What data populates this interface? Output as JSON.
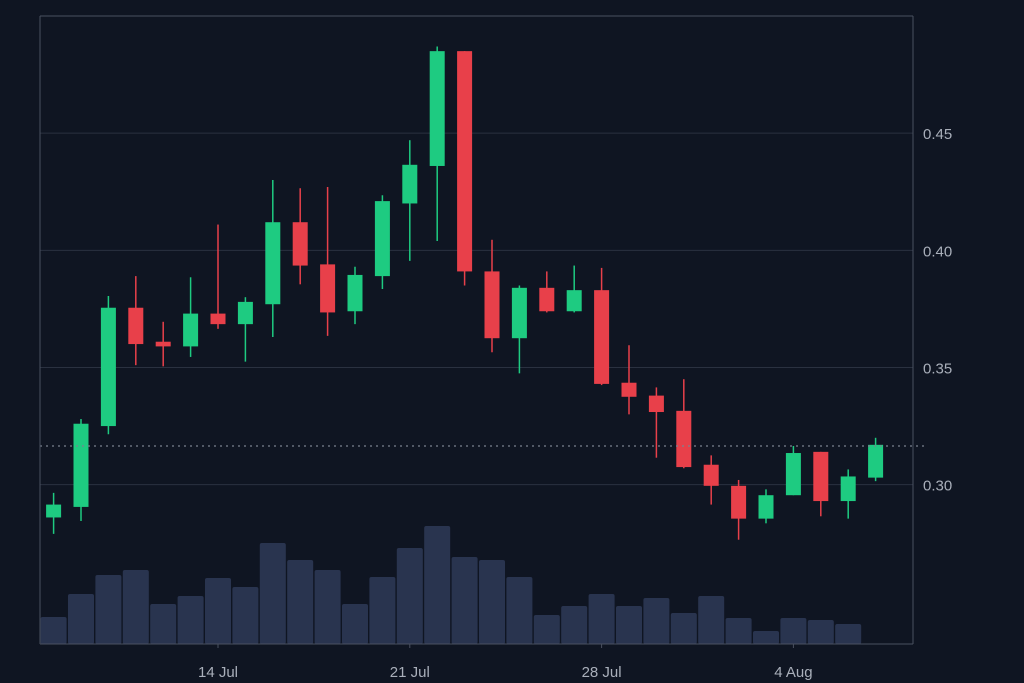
{
  "chart_data": {
    "type": "candlestick",
    "title": "",
    "xlabel": "",
    "ylabel": "",
    "y_ticks": [
      "0.30",
      "0.35",
      "0.40",
      "0.45"
    ],
    "x_ticks": [
      {
        "label": "14 Jul",
        "index": 6
      },
      {
        "label": "21 Jul",
        "index": 13
      },
      {
        "label": "28 Jul",
        "index": 20
      },
      {
        "label": "4 Aug",
        "index": 27
      }
    ],
    "ylim": [
      0.232,
      0.5
    ],
    "current_price": 0.3165,
    "grid": true,
    "colors": {
      "background": "#0f1522",
      "grid": "#2a3140",
      "axis": "#4a5160",
      "up": "#1ecb81",
      "down": "#e8404a",
      "volume": "#29344f",
      "tick_text": "#a9afba",
      "price_line": "#7a8290"
    },
    "candles": [
      {
        "date": "8 Jul",
        "open": 0.286,
        "high": 0.2965,
        "low": 0.279,
        "close": 0.2915,
        "volume": 27
      },
      {
        "date": "9 Jul",
        "open": 0.2905,
        "high": 0.328,
        "low": 0.2845,
        "close": 0.326,
        "volume": 50
      },
      {
        "date": "10 Jul",
        "open": 0.325,
        "high": 0.3805,
        "low": 0.3215,
        "close": 0.3755,
        "volume": 69
      },
      {
        "date": "11 Jul",
        "open": 0.3755,
        "high": 0.389,
        "low": 0.351,
        "close": 0.36,
        "volume": 74
      },
      {
        "date": "12 Jul",
        "open": 0.361,
        "high": 0.3695,
        "low": 0.3505,
        "close": 0.359,
        "volume": 40
      },
      {
        "date": "13 Jul",
        "open": 0.359,
        "high": 0.3885,
        "low": 0.3545,
        "close": 0.373,
        "volume": 48
      },
      {
        "date": "14 Jul",
        "open": 0.373,
        "high": 0.411,
        "low": 0.3665,
        "close": 0.3685,
        "volume": 66
      },
      {
        "date": "15 Jul",
        "open": 0.3685,
        "high": 0.38,
        "low": 0.3525,
        "close": 0.378,
        "volume": 57
      },
      {
        "date": "16 Jul",
        "open": 0.377,
        "high": 0.43,
        "low": 0.363,
        "close": 0.412,
        "volume": 101
      },
      {
        "date": "17 Jul",
        "open": 0.412,
        "high": 0.4265,
        "low": 0.3855,
        "close": 0.3935,
        "volume": 84
      },
      {
        "date": "18 Jul",
        "open": 0.394,
        "high": 0.427,
        "low": 0.3635,
        "close": 0.3735,
        "volume": 74
      },
      {
        "date": "19 Jul",
        "open": 0.374,
        "high": 0.393,
        "low": 0.3685,
        "close": 0.3895,
        "volume": 40
      },
      {
        "date": "20 Jul",
        "open": 0.389,
        "high": 0.4235,
        "low": 0.3835,
        "close": 0.421,
        "volume": 67
      },
      {
        "date": "21 Jul",
        "open": 0.42,
        "high": 0.447,
        "low": 0.3955,
        "close": 0.4365,
        "volume": 96
      },
      {
        "date": "22 Jul",
        "open": 0.436,
        "high": 0.487,
        "low": 0.404,
        "close": 0.485,
        "volume": 118
      },
      {
        "date": "23 Jul",
        "open": 0.485,
        "high": 0.485,
        "low": 0.385,
        "close": 0.391,
        "volume": 87
      },
      {
        "date": "24 Jul",
        "open": 0.391,
        "high": 0.4045,
        "low": 0.3565,
        "close": 0.3625,
        "volume": 84
      },
      {
        "date": "25 Jul",
        "open": 0.3625,
        "high": 0.385,
        "low": 0.3475,
        "close": 0.384,
        "volume": 67
      },
      {
        "date": "26 Jul",
        "open": 0.384,
        "high": 0.391,
        "low": 0.3735,
        "close": 0.374,
        "volume": 29
      },
      {
        "date": "27 Jul",
        "open": 0.374,
        "high": 0.3935,
        "low": 0.3735,
        "close": 0.383,
        "volume": 38
      },
      {
        "date": "28 Jul",
        "open": 0.383,
        "high": 0.3925,
        "low": 0.3425,
        "close": 0.343,
        "volume": 50
      },
      {
        "date": "29 Jul",
        "open": 0.3435,
        "high": 0.3595,
        "low": 0.33,
        "close": 0.3375,
        "volume": 38
      },
      {
        "date": "30 Jul",
        "open": 0.338,
        "high": 0.3415,
        "low": 0.3115,
        "close": 0.331,
        "volume": 46
      },
      {
        "date": "31 Jul",
        "open": 0.3315,
        "high": 0.345,
        "low": 0.307,
        "close": 0.3075,
        "volume": 31
      },
      {
        "date": "1 Aug",
        "open": 0.3085,
        "high": 0.3125,
        "low": 0.2915,
        "close": 0.2995,
        "volume": 48
      },
      {
        "date": "2 Aug",
        "open": 0.2995,
        "high": 0.302,
        "low": 0.2765,
        "close": 0.2855,
        "volume": 26
      },
      {
        "date": "3 Aug",
        "open": 0.2855,
        "high": 0.298,
        "low": 0.2835,
        "close": 0.2955,
        "volume": 13
      },
      {
        "date": "4 Aug",
        "open": 0.2955,
        "high": 0.3165,
        "low": 0.2955,
        "close": 0.3135,
        "volume": 26
      },
      {
        "date": "5 Aug",
        "open": 0.314,
        "high": 0.314,
        "low": 0.2865,
        "close": 0.293,
        "volume": 24
      },
      {
        "date": "6 Aug",
        "open": 0.293,
        "high": 0.3065,
        "low": 0.2855,
        "close": 0.3035,
        "volume": 20
      },
      {
        "date": "7 Aug",
        "open": 0.303,
        "high": 0.32,
        "low": 0.3015,
        "close": 0.317,
        "volume": null
      }
    ]
  }
}
